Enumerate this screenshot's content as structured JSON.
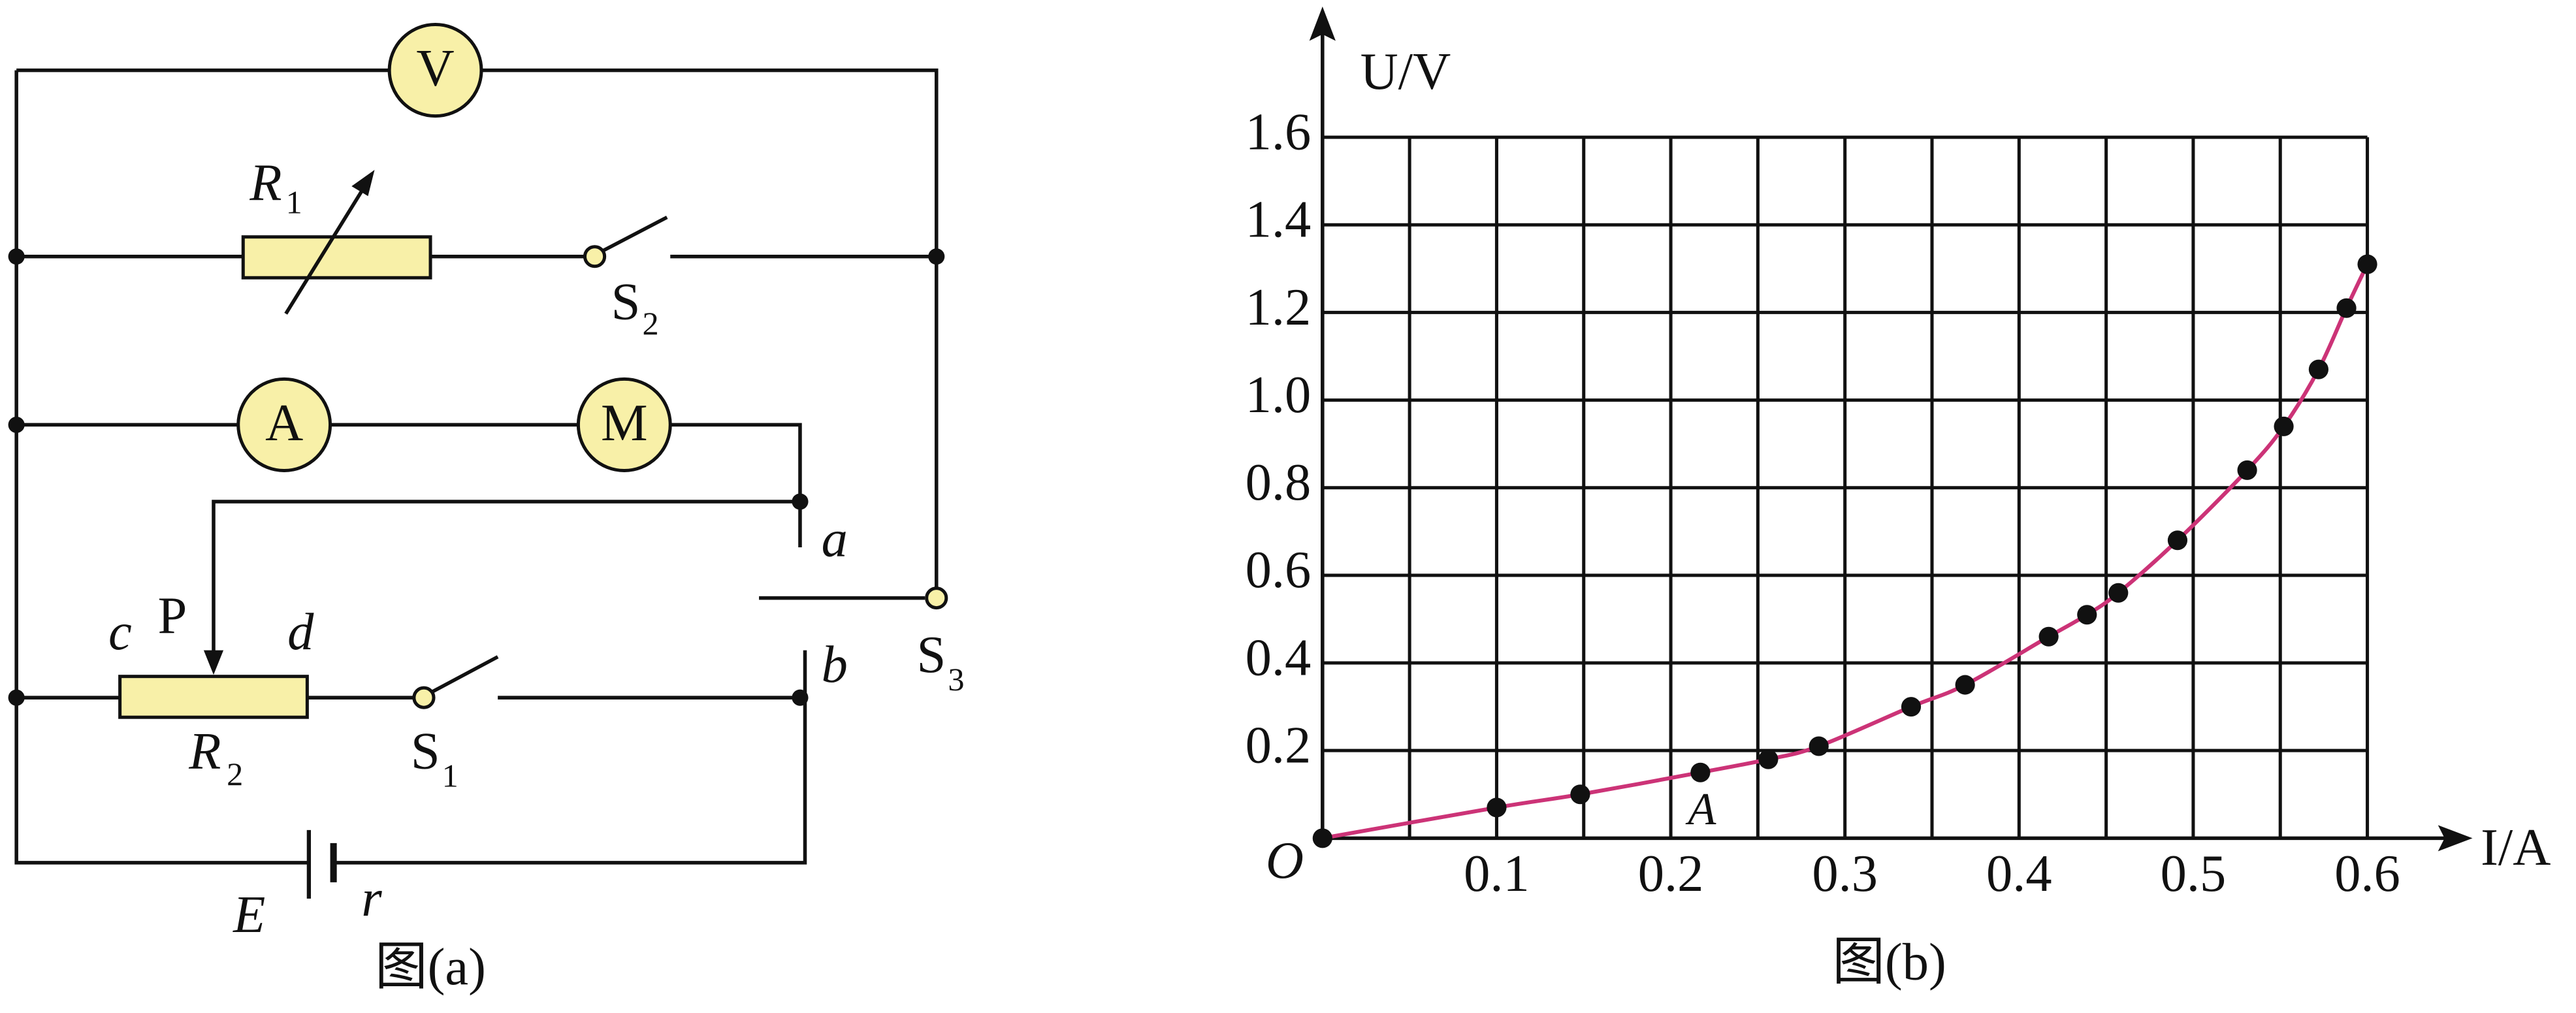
{
  "circuit": {
    "voltmeter": "V",
    "ammeter": "A",
    "motor": "M",
    "r1": {
      "main": "R",
      "sub": "1"
    },
    "s2": {
      "main": "S",
      "sub": "2"
    },
    "s3": {
      "main": "S",
      "sub": "3"
    },
    "s1": {
      "main": "S",
      "sub": "1"
    },
    "r2": {
      "main": "R",
      "sub": "2"
    },
    "terminal_a": "a",
    "terminal_b": "b",
    "end_c": "c",
    "slider": "P",
    "end_d": "d",
    "emf": "E",
    "internal_r": "r",
    "caption": "图(a)"
  },
  "chart_data": {
    "type": "scatter",
    "caption": "图(b)",
    "ylabel": "U/V",
    "xlabel": "I/A",
    "origin": "O",
    "annotation": "A",
    "xlim": [
      0,
      0.6
    ],
    "ylim": [
      0,
      1.6
    ],
    "xticks": [
      {
        "value": 0.05,
        "label": null
      },
      0.1,
      {
        "value": 0.15,
        "label": null
      },
      0.2,
      {
        "value": 0.25,
        "label": null
      },
      0.3,
      {
        "value": 0.35,
        "label": null
      },
      0.4,
      {
        "value": 0.45,
        "label": null
      },
      0.5,
      {
        "value": 0.55,
        "label": null
      },
      0.6
    ],
    "yticks": [
      0.2,
      0.4,
      0.6,
      0.8,
      {
        "value": 1,
        "label": "1.0"
      },
      1.2,
      1.4,
      1.6
    ],
    "grid": true,
    "x": [
      0,
      0.1,
      0.148,
      0.217,
      0.256,
      0.285,
      0.338,
      0.369,
      0.417,
      0.439,
      0.457,
      0.491,
      0.531,
      0.552,
      0.572,
      0.588,
      0.6
    ],
    "series": [
      {
        "color": "#111111",
        "line_color": "#cc3377",
        "values": [
          0,
          0.07,
          0.1,
          0.15,
          0.18,
          0.21,
          0.3,
          0.35,
          0.46,
          0.51,
          0.56,
          0.68,
          0.84,
          0.94,
          1.07,
          1.21,
          1.31
        ]
      }
    ]
  }
}
